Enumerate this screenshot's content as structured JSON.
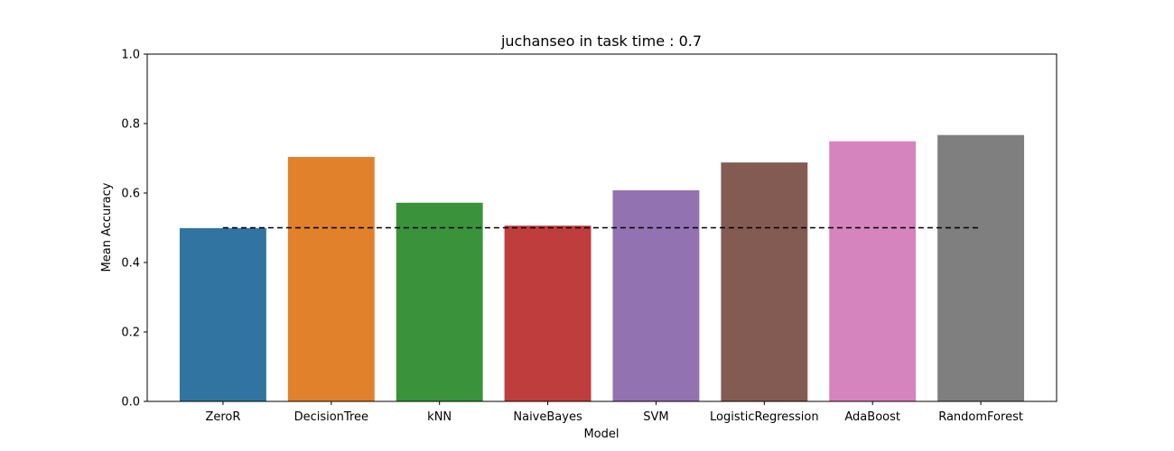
{
  "chart_data": {
    "type": "bar",
    "title": "juchanseo in task time : 0.7",
    "xlabel": "Model",
    "ylabel": "Mean Accuracy",
    "ylim": [
      0,
      1.0
    ],
    "yticks": [
      "0.0",
      "0.2",
      "0.4",
      "0.6",
      "0.8",
      "1.0"
    ],
    "categories": [
      "ZeroR",
      "DecisionTree",
      "kNN",
      "NaiveBayes",
      "SVM",
      "LogisticRegression",
      "AdaBoost",
      "RandomForest"
    ],
    "values": [
      0.499,
      0.704,
      0.572,
      0.506,
      0.608,
      0.688,
      0.749,
      0.767
    ],
    "colors": [
      "#3274a1",
      "#e1812c",
      "#3a923a",
      "#c03d3e",
      "#9372b2",
      "#845b53",
      "#d684bd",
      "#7f7f7f"
    ],
    "baseline": 0.5,
    "baseline_color": "#000000",
    "grid": false,
    "legend": "none"
  }
}
